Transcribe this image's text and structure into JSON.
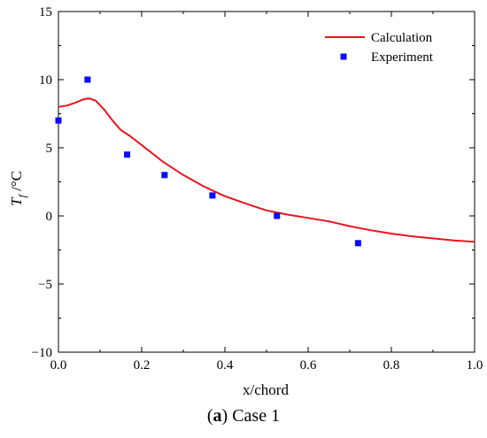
{
  "chart_data": {
    "type": "line",
    "title": "",
    "xlabel": "x/chord",
    "ylabel_main": "T",
    "ylabel_sub": "f",
    "ylabel_unit": " /°C",
    "xlim": [
      0,
      1.0
    ],
    "ylim": [
      -10,
      15
    ],
    "x_ticks": [
      "0.0",
      "0.2",
      "0.4",
      "0.6",
      "0.8",
      "1.0"
    ],
    "y_ticks": [
      "−10",
      "−5",
      "0",
      "5",
      "10",
      "15"
    ],
    "grid": false,
    "legend_position": "top-right",
    "series": [
      {
        "name": "Calculation",
        "kind": "line",
        "color": "#e8141c",
        "x": [
          0.0,
          0.02,
          0.04,
          0.06,
          0.075,
          0.09,
          0.11,
          0.13,
          0.15,
          0.17,
          0.2,
          0.25,
          0.3,
          0.35,
          0.4,
          0.45,
          0.5,
          0.55,
          0.6,
          0.65,
          0.7,
          0.75,
          0.8,
          0.85,
          0.9,
          0.95,
          1.0
        ],
        "y": [
          8.0,
          8.1,
          8.3,
          8.55,
          8.62,
          8.45,
          7.8,
          7.0,
          6.3,
          5.9,
          5.2,
          4.0,
          3.0,
          2.15,
          1.45,
          0.9,
          0.4,
          0.1,
          -0.15,
          -0.4,
          -0.75,
          -1.05,
          -1.3,
          -1.5,
          -1.65,
          -1.8,
          -1.9
        ]
      },
      {
        "name": "Experiment",
        "kind": "scatter",
        "color": "#0b0bff",
        "x": [
          0.0,
          0.07,
          0.165,
          0.255,
          0.37,
          0.525,
          0.72
        ],
        "y": [
          7.0,
          10.0,
          4.5,
          3.0,
          1.5,
          0.0,
          -2.0
        ]
      }
    ]
  },
  "caption": {
    "bold": "a",
    "text": " Case 1"
  }
}
